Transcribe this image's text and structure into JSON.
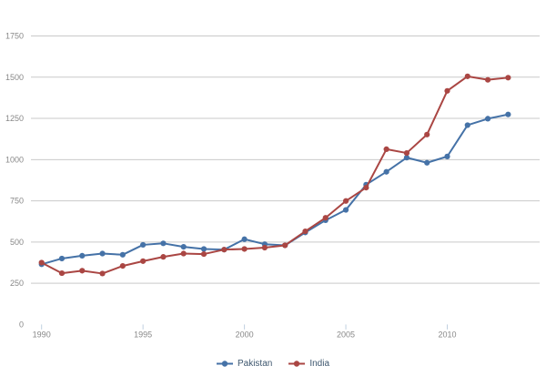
{
  "chart_data": {
    "type": "line",
    "title": "",
    "xlabel": "",
    "ylabel": "",
    "x": [
      1990,
      1991,
      1992,
      1993,
      1994,
      1995,
      1996,
      1997,
      1998,
      1999,
      2000,
      2001,
      2002,
      2003,
      2004,
      2005,
      2006,
      2007,
      2008,
      2009,
      2010,
      2011,
      2012,
      2013
    ],
    "series": [
      {
        "name": "Pakistan",
        "color": "#4572A7",
        "values": [
          365,
          400,
          417,
          430,
          423,
          483,
          492,
          471,
          458,
          454,
          517,
          487,
          480,
          558,
          632,
          695,
          848,
          926,
          1012,
          981,
          1019,
          1209,
          1248,
          1274
        ]
      },
      {
        "name": "India",
        "color": "#AA4643",
        "values": [
          375,
          311,
          326,
          309,
          355,
          384,
          410,
          430,
          427,
          454,
          458,
          466,
          480,
          565,
          647,
          749,
          830,
          1063,
          1040,
          1152,
          1417,
          1505,
          1484,
          1497
        ]
      }
    ],
    "ylim": [
      0,
      1750
    ],
    "yticks": [
      0,
      250,
      500,
      750,
      1000,
      1250,
      1500,
      1750
    ],
    "xticks": [
      1990,
      1995,
      2000,
      2005,
      2010
    ],
    "grid": "horizontal",
    "legend_position": "bottom-center",
    "style": {
      "background": "#FFFFFF",
      "grid_color": "#C9C9C9",
      "tick_color": "#C0D0E0",
      "axis_label_color": "#888888",
      "legend_text_color": "#3E576F"
    }
  }
}
